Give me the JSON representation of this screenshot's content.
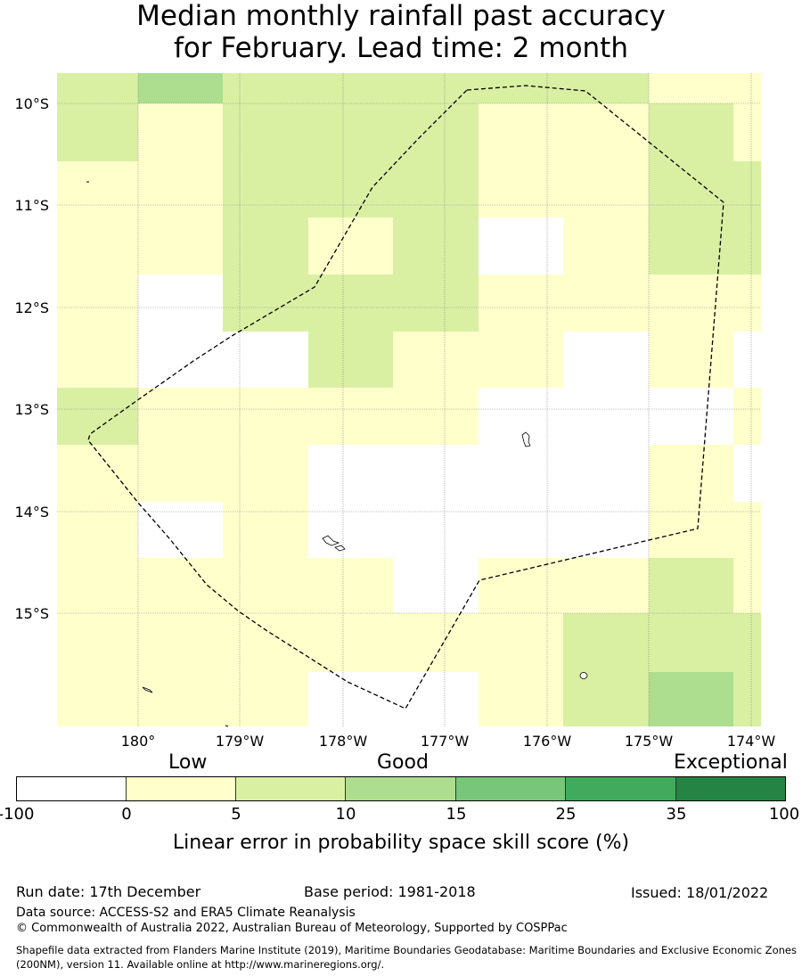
{
  "title": {
    "line1": "Median monthly rainfall past accuracy",
    "line2": "for February. Lead time: 2 month"
  },
  "map": {
    "lat_labels": [
      "10°S",
      "11°S",
      "12°S",
      "13°S",
      "14°S",
      "15°S"
    ],
    "lon_labels": [
      "180°",
      "179°W",
      "178°W",
      "177°W",
      "176°W",
      "175°W",
      "174°W"
    ],
    "grid_colors": {
      "0": "#ffffff",
      "1": "#ffffcc",
      "2": "#d9f0a3",
      "3": "#addd8e"
    },
    "grid_categories": [
      [
        2,
        3,
        2,
        2,
        2,
        2,
        2,
        1,
        1
      ],
      [
        2,
        1,
        2,
        2,
        2,
        1,
        1,
        2,
        1
      ],
      [
        1,
        1,
        2,
        1,
        2,
        0,
        1,
        2,
        2
      ],
      [
        1,
        0,
        2,
        2,
        2,
        1,
        1,
        1,
        1
      ],
      [
        1,
        0,
        0,
        2,
        1,
        1,
        0,
        1,
        0
      ],
      [
        2,
        1,
        1,
        1,
        1,
        0,
        0,
        0,
        1
      ],
      [
        1,
        1,
        1,
        0,
        0,
        0,
        0,
        1,
        0
      ],
      [
        1,
        0,
        1,
        0,
        0,
        0,
        0,
        1,
        1
      ],
      [
        1,
        1,
        1,
        1,
        0,
        1,
        1,
        2,
        1
      ],
      [
        1,
        1,
        1,
        1,
        1,
        1,
        2,
        2,
        2
      ],
      [
        1,
        1,
        1,
        0,
        0,
        1,
        2,
        3,
        2
      ]
    ]
  },
  "colorbar": {
    "category_labels": [
      "Low",
      "Good",
      "Exceptional"
    ],
    "ticks": [
      "-100",
      "0",
      "5",
      "10",
      "15",
      "25",
      "35",
      "100"
    ],
    "colors": [
      "#ffffff",
      "#ffffcc",
      "#d9f0a3",
      "#addd8e",
      "#78c679",
      "#41ab5d",
      "#238443"
    ],
    "title": "Linear error in probability space skill score (%)"
  },
  "footer": {
    "run_date": "Run date: 17th December",
    "base_period": "Base period: 1981-2018",
    "issued": "Issued: 18/01/2022",
    "data_source": "Data source: ACCESS-S2 and ERA5 Climate Reanalysis",
    "copyright": "© Commonwealth of Australia 2022, Australian Bureau of Meteorology, Supported by COSPPac",
    "shapefile": "Shapefile data extracted from Flanders Marine Institute (2019), Maritime Boundaries Geodatabase: Maritime Boundaries and Exclusive Economic Zones (200NM), version 11. Available online at http://www.marineregions.org/."
  }
}
